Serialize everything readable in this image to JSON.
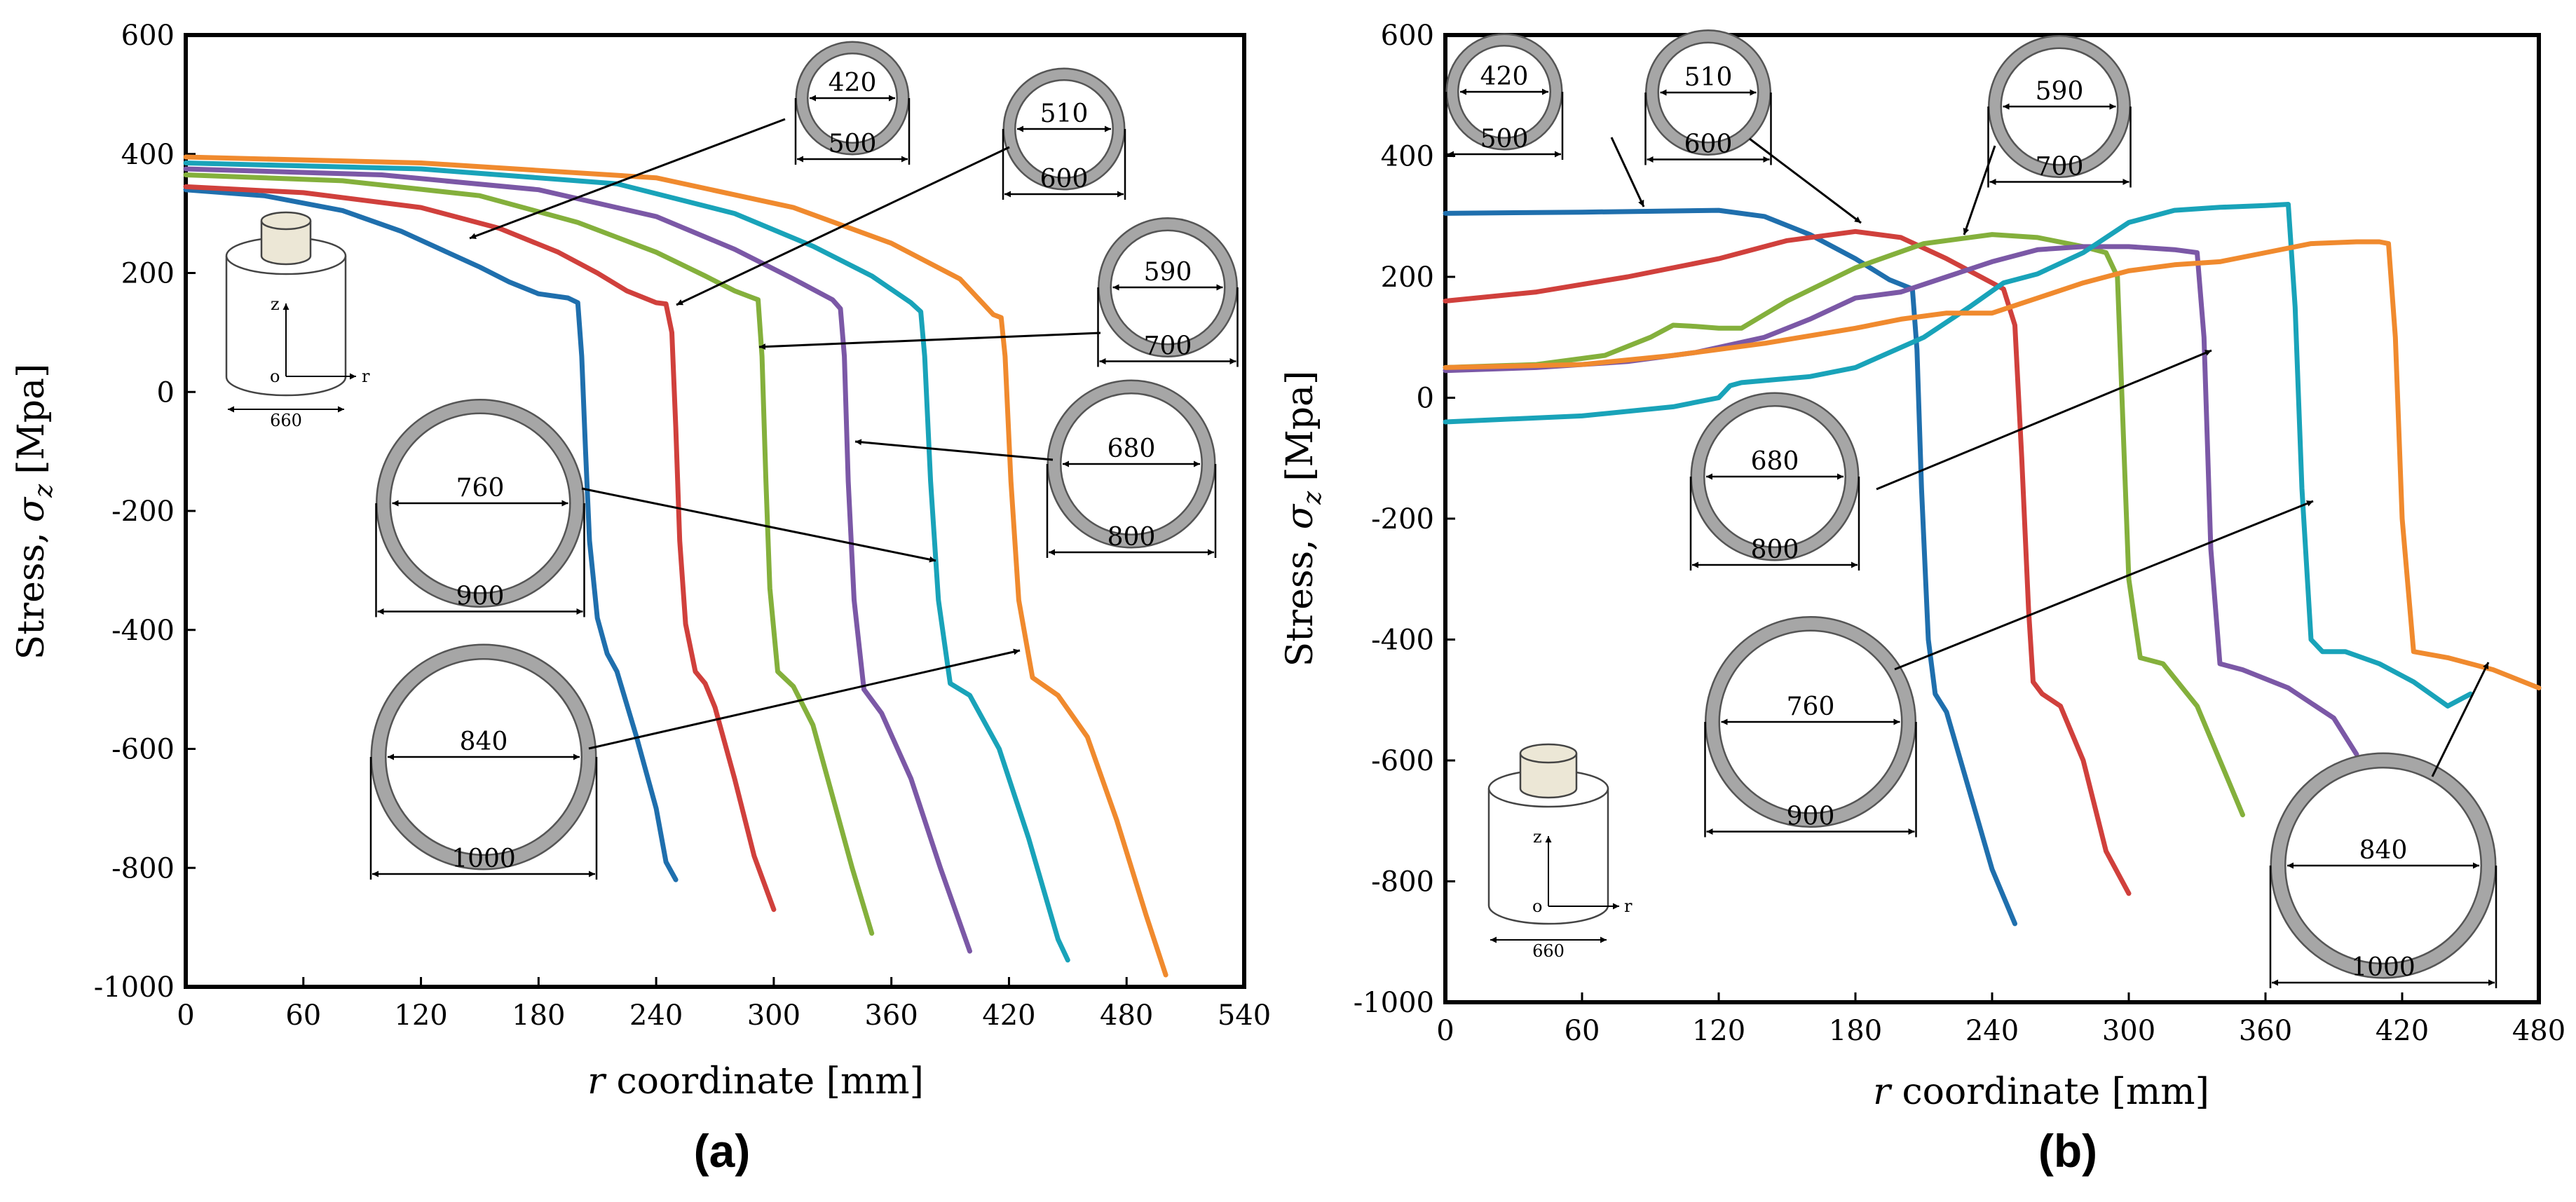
{
  "figure": {
    "panel_labels": [
      "(a)",
      "(b)"
    ],
    "ylabel_prefix": "Stress,",
    "ylabel_symbol": "σ",
    "ylabel_subscript": "z",
    "ylabel_unit": "[Mpa]",
    "xlabel_var": "r",
    "xlabel_rest": " coordinate [mm]"
  },
  "colors": {
    "blue": "#1f6fad",
    "red": "#d0403c",
    "green": "#84b03c",
    "purple": "#7b58a6",
    "cyan": "#19a3b9",
    "orange": "#f08a2e",
    "ring_fill": "#a6a6a6",
    "ring_stroke": "#555555",
    "inset_top": "#ece7d6"
  },
  "inset": {
    "dim": "660",
    "axis_z": "z",
    "axis_r": "r",
    "origin": "o"
  },
  "chart_data": [
    {
      "type": "line",
      "panel": "(a)",
      "xlabel": "r coordinate [mm]",
      "ylabel": "Stress, σz [Mpa]",
      "xlim": [
        0,
        540
      ],
      "ylim": [
        -1000,
        600
      ],
      "xticks": [
        0,
        60,
        120,
        180,
        240,
        300,
        360,
        420,
        480,
        540
      ],
      "yticks": [
        600,
        400,
        200,
        0,
        -200,
        -400,
        -600,
        -800,
        -1000
      ],
      "series": [
        {
          "name": "420/500",
          "color": "blue",
          "x": [
            0,
            40,
            80,
            110,
            130,
            150,
            165,
            180,
            195,
            200,
            202,
            204,
            206,
            210,
            215,
            220,
            230,
            240,
            245,
            250
          ],
          "y": [
            340,
            330,
            305,
            270,
            240,
            210,
            185,
            165,
            158,
            150,
            60,
            -100,
            -250,
            -380,
            -440,
            -470,
            -580,
            -700,
            -790,
            -820
          ]
        },
        {
          "name": "510/600",
          "color": "red",
          "x": [
            0,
            60,
            120,
            160,
            190,
            210,
            225,
            240,
            245,
            248,
            250,
            252,
            255,
            260,
            265,
            270,
            280,
            290,
            300
          ],
          "y": [
            345,
            335,
            310,
            275,
            235,
            200,
            170,
            150,
            148,
            100,
            -60,
            -250,
            -390,
            -470,
            -490,
            -530,
            -650,
            -780,
            -870
          ]
        },
        {
          "name": "590/700",
          "color": "green",
          "x": [
            0,
            80,
            150,
            200,
            240,
            265,
            280,
            288,
            292,
            294,
            296,
            298,
            302,
            310,
            320,
            330,
            340,
            350
          ],
          "y": [
            365,
            355,
            330,
            285,
            235,
            195,
            170,
            160,
            155,
            60,
            -150,
            -330,
            -470,
            -495,
            -560,
            -680,
            -800,
            -910
          ]
        },
        {
          "name": "680/800",
          "color": "purple",
          "x": [
            0,
            100,
            180,
            240,
            280,
            310,
            330,
            334,
            336,
            338,
            341,
            346,
            355,
            370,
            385,
            400
          ],
          "y": [
            375,
            365,
            340,
            295,
            240,
            190,
            155,
            140,
            60,
            -150,
            -350,
            -500,
            -540,
            -650,
            -800,
            -940
          ]
        },
        {
          "name": "760/900",
          "color": "cyan",
          "x": [
            0,
            120,
            220,
            280,
            320,
            350,
            370,
            375,
            377,
            380,
            384,
            390,
            400,
            415,
            430,
            445,
            450
          ],
          "y": [
            385,
            375,
            350,
            300,
            245,
            195,
            150,
            135,
            60,
            -150,
            -350,
            -490,
            -510,
            -600,
            -750,
            -920,
            -955
          ]
        },
        {
          "name": "840/1000",
          "color": "orange",
          "x": [
            0,
            120,
            240,
            310,
            360,
            395,
            412,
            416,
            418,
            421,
            425,
            432,
            445,
            460,
            475,
            490,
            500
          ],
          "y": [
            395,
            385,
            360,
            310,
            250,
            190,
            130,
            125,
            60,
            -150,
            -350,
            -480,
            -510,
            -580,
            -720,
            -880,
            -980
          ]
        }
      ],
      "annotations": [
        {
          "inner": "420",
          "outer": "500"
        },
        {
          "inner": "510",
          "outer": "600"
        },
        {
          "inner": "590",
          "outer": "700"
        },
        {
          "inner": "680",
          "outer": "800"
        },
        {
          "inner": "760",
          "outer": "900"
        },
        {
          "inner": "840",
          "outer": "1000"
        }
      ]
    },
    {
      "type": "line",
      "panel": "(b)",
      "xlabel": "r coordinate [mm]",
      "ylabel": "Stress, σz [Mpa]",
      "xlim": [
        0,
        480
      ],
      "ylim": [
        -1000,
        600
      ],
      "xticks": [
        0,
        60,
        120,
        180,
        240,
        300,
        360,
        420,
        480
      ],
      "yticks": [
        600,
        400,
        200,
        0,
        -200,
        -400,
        -600,
        -800,
        -1000
      ],
      "series": [
        {
          "name": "420/500",
          "color": "blue",
          "x": [
            0,
            60,
            120,
            140,
            160,
            180,
            195,
            205,
            207,
            209,
            212,
            215,
            220,
            230,
            240,
            250
          ],
          "y": [
            305,
            307,
            310,
            300,
            270,
            230,
            195,
            180,
            80,
            -150,
            -400,
            -490,
            -520,
            -650,
            -780,
            -870
          ]
        },
        {
          "name": "510/600",
          "color": "red",
          "x": [
            0,
            40,
            80,
            120,
            150,
            180,
            200,
            220,
            235,
            245,
            250,
            253,
            256,
            258,
            262,
            270,
            280,
            290,
            300
          ],
          "y": [
            160,
            175,
            200,
            230,
            260,
            275,
            265,
            230,
            200,
            180,
            120,
            -100,
            -350,
            -470,
            -490,
            -510,
            -600,
            -750,
            -820
          ]
        },
        {
          "name": "590/700",
          "color": "green",
          "x": [
            0,
            40,
            70,
            90,
            100,
            110,
            120,
            130,
            150,
            180,
            210,
            240,
            260,
            280,
            290,
            295,
            297,
            300,
            305,
            315,
            330,
            340,
            350
          ],
          "y": [
            50,
            55,
            70,
            100,
            120,
            118,
            115,
            115,
            160,
            215,
            255,
            270,
            265,
            250,
            240,
            200,
            0,
            -300,
            -430,
            -440,
            -510,
            -600,
            -690
          ]
        },
        {
          "name": "680/800",
          "color": "purple",
          "x": [
            0,
            40,
            80,
            110,
            140,
            160,
            180,
            200,
            220,
            240,
            260,
            280,
            300,
            320,
            330,
            333,
            336,
            340,
            350,
            370,
            390,
            400
          ],
          "y": [
            45,
            50,
            60,
            75,
            100,
            130,
            165,
            175,
            200,
            225,
            245,
            250,
            250,
            245,
            240,
            100,
            -250,
            -440,
            -450,
            -480,
            -530,
            -590
          ]
        },
        {
          "name": "760/900",
          "color": "cyan",
          "x": [
            0,
            60,
            100,
            120,
            125,
            130,
            160,
            180,
            210,
            230,
            245,
            260,
            280,
            300,
            320,
            340,
            360,
            370,
            373,
            376,
            380,
            385,
            395,
            410,
            425,
            440,
            450
          ],
          "y": [
            -40,
            -30,
            -15,
            0,
            20,
            25,
            35,
            50,
            100,
            150,
            190,
            205,
            240,
            290,
            310,
            315,
            318,
            320,
            150,
            -150,
            -400,
            -420,
            -420,
            -440,
            -470,
            -510,
            -490
          ]
        },
        {
          "name": "840/1000",
          "color": "orange",
          "x": [
            0,
            60,
            100,
            140,
            180,
            200,
            220,
            240,
            260,
            280,
            300,
            320,
            340,
            360,
            380,
            400,
            410,
            414,
            417,
            420,
            425,
            440,
            460,
            480
          ],
          "y": [
            50,
            55,
            70,
            90,
            115,
            130,
            140,
            140,
            165,
            190,
            210,
            220,
            225,
            240,
            255,
            258,
            258,
            255,
            100,
            -200,
            -420,
            -430,
            -450,
            -480
          ]
        }
      ],
      "annotations": [
        {
          "inner": "420",
          "outer": "500"
        },
        {
          "inner": "510",
          "outer": "600"
        },
        {
          "inner": "590",
          "outer": "700"
        },
        {
          "inner": "680",
          "outer": "800"
        },
        {
          "inner": "760",
          "outer": "900"
        },
        {
          "inner": "840",
          "outer": "1000"
        }
      ]
    }
  ]
}
